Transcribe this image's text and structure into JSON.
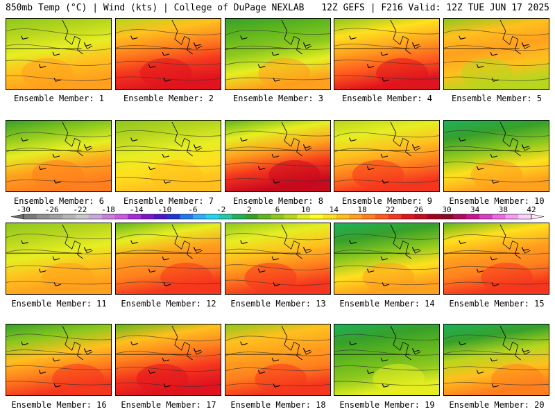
{
  "header": {
    "left": "850mb Temp (°C) | Wind (kts) | College of DuPage NEXLAB",
    "right": "12Z GEFS | F216 Valid: 12Z TUE JUN 17 2025"
  },
  "colorbar": {
    "tick_labels": [
      "-30",
      "-26",
      "-22",
      "-18",
      "-14",
      "-10",
      "-6",
      "-2",
      "2",
      "6",
      "10",
      "14",
      "18",
      "22",
      "26",
      "30",
      "34",
      "38",
      "42"
    ],
    "colors": [
      "#7a7a7a",
      "#8f8f8f",
      "#a0a0a0",
      "#b5b5b5",
      "#c8c8c8",
      "#c9a7d9",
      "#c97fd9",
      "#c95be0",
      "#a52ad8",
      "#7b17c9",
      "#4b17c9",
      "#2233d6",
      "#2277ee",
      "#33aaff",
      "#22d6ee",
      "#22c9a8",
      "#1eb15a",
      "#37a02a",
      "#5fb61e",
      "#8cc81e",
      "#b8d61e",
      "#e6ee22",
      "#ffff22",
      "#ffe01e",
      "#ffc01e",
      "#ffa01e",
      "#ff7f1e",
      "#ff5a1e",
      "#f5361e",
      "#e0141e",
      "#c80a1e",
      "#a5001e",
      "#8a0a28",
      "#b00a5a",
      "#c9148f",
      "#d93cbf",
      "#ee6ae0",
      "#f79cf0",
      "#fcd2fa"
    ]
  },
  "panels": [
    {
      "label": "Ensemble Member: 1",
      "colors": [
        "#8cc81e",
        "#b8d61e",
        "#e6ee22",
        "#ffc01e",
        "#ffa01e"
      ]
    },
    {
      "label": "Ensemble Member: 2",
      "colors": [
        "#b8d61e",
        "#ffc01e",
        "#ff7f1e",
        "#f5361e",
        "#e0141e"
      ]
    },
    {
      "label": "Ensemble Member: 3",
      "colors": [
        "#37a02a",
        "#5fb61e",
        "#8cc81e",
        "#e6ee22",
        "#ffa01e"
      ]
    },
    {
      "label": "Ensemble Member: 4",
      "colors": [
        "#8cc81e",
        "#ffe01e",
        "#ffa01e",
        "#ff5a1e",
        "#e0141e"
      ]
    },
    {
      "label": "Ensemble Member: 5",
      "colors": [
        "#8cc81e",
        "#ffc01e",
        "#ffa01e",
        "#ffc01e",
        "#b8d61e"
      ]
    },
    {
      "label": "Ensemble Member: 6",
      "colors": [
        "#37a02a",
        "#8cc81e",
        "#e6ee22",
        "#ffa01e",
        "#ff7f1e"
      ]
    },
    {
      "label": "Ensemble Member: 7",
      "colors": [
        "#8cc81e",
        "#b8d61e",
        "#e6ee22",
        "#ffe01e",
        "#ffc01e"
      ]
    },
    {
      "label": "Ensemble Member: 8",
      "colors": [
        "#5fb61e",
        "#e6ee22",
        "#ffa01e",
        "#f5361e",
        "#c80a1e"
      ]
    },
    {
      "label": "Ensemble Member: 9",
      "colors": [
        "#b8d61e",
        "#e6ee22",
        "#ffc01e",
        "#ff7f1e",
        "#f5361e"
      ]
    },
    {
      "label": "Ensemble Member: 10",
      "colors": [
        "#1eb15a",
        "#37a02a",
        "#8cc81e",
        "#ffe01e",
        "#ffa01e"
      ]
    },
    {
      "label": "Ensemble Member: 11",
      "colors": [
        "#8cc81e",
        "#b8d61e",
        "#e6ee22",
        "#ffc01e",
        "#ffa01e"
      ]
    },
    {
      "label": "Ensemble Member: 12",
      "colors": [
        "#5fb61e",
        "#e6ee22",
        "#ffa01e",
        "#ff7f1e",
        "#f5361e"
      ]
    },
    {
      "label": "Ensemble Member: 13",
      "colors": [
        "#8cc81e",
        "#e6ee22",
        "#ffc01e",
        "#ff7f1e",
        "#f5361e"
      ]
    },
    {
      "label": "Ensemble Member: 14",
      "colors": [
        "#1eb15a",
        "#37a02a",
        "#8cc81e",
        "#ffe01e",
        "#ffa01e"
      ]
    },
    {
      "label": "Ensemble Member: 15",
      "colors": [
        "#5fb61e",
        "#ffe01e",
        "#ffa01e",
        "#ff7f1e",
        "#f5361e"
      ]
    },
    {
      "label": "Ensemble Member: 16",
      "colors": [
        "#37a02a",
        "#8cc81e",
        "#ffc01e",
        "#ff7f1e",
        "#f5361e"
      ]
    },
    {
      "label": "Ensemble Member: 17",
      "colors": [
        "#5fb61e",
        "#ffc01e",
        "#ff7f1e",
        "#f5361e",
        "#e0141e"
      ]
    },
    {
      "label": "Ensemble Member: 18",
      "colors": [
        "#8cc81e",
        "#ffc01e",
        "#ffa01e",
        "#ff7f1e",
        "#f5361e"
      ]
    },
    {
      "label": "Ensemble Member: 19",
      "colors": [
        "#1eb15a",
        "#37a02a",
        "#5fb61e",
        "#8cc81e",
        "#e6ee22"
      ]
    },
    {
      "label": "Ensemble Member: 20",
      "colors": [
        "#1eb15a",
        "#37a02a",
        "#b8d61e",
        "#ffc01e",
        "#ff7f1e"
      ]
    }
  ]
}
